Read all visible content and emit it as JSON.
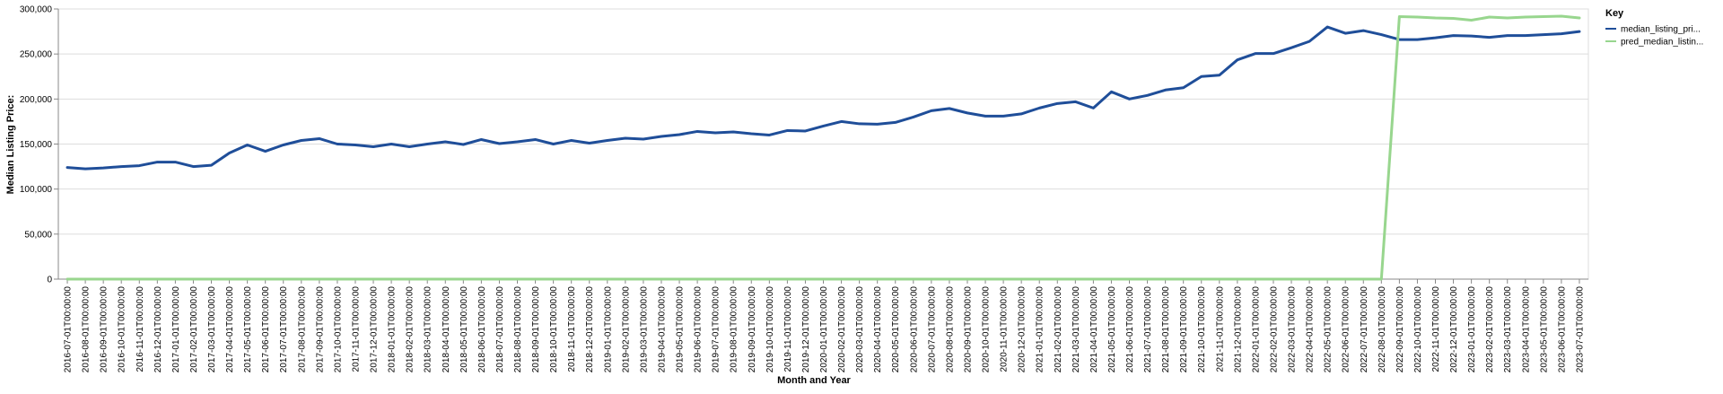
{
  "chart_data": {
    "type": "line",
    "xlabel": "Month and Year",
    "ylabel": "Median Listing Price:",
    "ylim": [
      0,
      300000
    ],
    "yticks": [
      "0",
      "50,000",
      "100,000",
      "150,000",
      "200,000",
      "250,000",
      "300,000"
    ],
    "ytick_values": [
      0,
      50000,
      100000,
      150000,
      200000,
      250000,
      300000
    ],
    "grid": true,
    "legend_title": "Key",
    "legend_position": "right",
    "x": [
      "2016-07-01T00:00:00",
      "2016-08-01T00:00:00",
      "2016-09-01T00:00:00",
      "2016-10-01T00:00:00",
      "2016-11-01T00:00:00",
      "2016-12-01T00:00:00",
      "2017-01-01T00:00:00",
      "2017-02-01T00:00:00",
      "2017-03-01T00:00:00",
      "2017-04-01T00:00:00",
      "2017-05-01T00:00:00",
      "2017-06-01T00:00:00",
      "2017-07-01T00:00:00",
      "2017-08-01T00:00:00",
      "2017-09-01T00:00:00",
      "2017-10-01T00:00:00",
      "2017-11-01T00:00:00",
      "2017-12-01T00:00:00",
      "2018-01-01T00:00:00",
      "2018-02-01T00:00:00",
      "2018-03-01T00:00:00",
      "2018-04-01T00:00:00",
      "2018-05-01T00:00:00",
      "2018-06-01T00:00:00",
      "2018-07-01T00:00:00",
      "2018-08-01T00:00:00",
      "2018-09-01T00:00:00",
      "2018-10-01T00:00:00",
      "2018-11-01T00:00:00",
      "2018-12-01T00:00:00",
      "2019-01-01T00:00:00",
      "2019-02-01T00:00:00",
      "2019-03-01T00:00:00",
      "2019-04-01T00:00:00",
      "2019-05-01T00:00:00",
      "2019-06-01T00:00:00",
      "2019-07-01T00:00:00",
      "2019-08-01T00:00:00",
      "2019-09-01T00:00:00",
      "2019-10-01T00:00:00",
      "2019-11-01T00:00:00",
      "2019-12-01T00:00:00",
      "2020-01-01T00:00:00",
      "2020-02-01T00:00:00",
      "2020-03-01T00:00:00",
      "2020-04-01T00:00:00",
      "2020-05-01T00:00:00",
      "2020-06-01T00:00:00",
      "2020-07-01T00:00:00",
      "2020-08-01T00:00:00",
      "2020-09-01T00:00:00",
      "2020-10-01T00:00:00",
      "2020-11-01T00:00:00",
      "2020-12-01T00:00:00",
      "2021-01-01T00:00:00",
      "2021-02-01T00:00:00",
      "2021-03-01T00:00:00",
      "2021-04-01T00:00:00",
      "2021-05-01T00:00:00",
      "2021-06-01T00:00:00",
      "2021-07-01T00:00:00",
      "2021-08-01T00:00:00",
      "2021-09-01T00:00:00",
      "2021-10-01T00:00:00",
      "2021-11-01T00:00:00",
      "2021-12-01T00:00:00",
      "2022-01-01T00:00:00",
      "2022-02-01T00:00:00",
      "2022-03-01T00:00:00",
      "2022-04-01T00:00:00",
      "2022-05-01T00:00:00",
      "2022-06-01T00:00:00",
      "2022-07-01T00:00:00",
      "2022-08-01T00:00:00",
      "2022-09-01T00:00:00",
      "2022-10-01T00:00:00",
      "2022-11-01T00:00:00",
      "2022-12-01T00:00:00",
      "2023-01-01T00:00:00",
      "2023-02-01T00:00:00",
      "2023-03-01T00:00:00",
      "2023-04-01T00:00:00",
      "2023-05-01T00:00:00",
      "2023-06-01T00:00:00",
      "2023-07-01T00:00:00"
    ],
    "series": [
      {
        "name": "median_listing_pri...",
        "color": "#1f4e99",
        "values": [
          124000,
          122500,
          123500,
          125000,
          126000,
          130000,
          130000,
          125000,
          126500,
          140000,
          149000,
          142000,
          149000,
          154000,
          156000,
          150000,
          149000,
          147000,
          150000,
          147000,
          150000,
          152500,
          149500,
          155000,
          150500,
          152500,
          155000,
          150000,
          154000,
          151000,
          154000,
          156500,
          155500,
          158500,
          160500,
          164000,
          162500,
          163500,
          161500,
          160000,
          165000,
          164500,
          170000,
          175000,
          172500,
          172000,
          174000,
          180000,
          187000,
          189500,
          184500,
          181000,
          181000,
          183500,
          190000,
          195000,
          197000,
          190000,
          208000,
          200000,
          204000,
          210000,
          212500,
          225000,
          226500,
          243500,
          250500,
          250500,
          257000,
          264000,
          280000,
          273000,
          276000,
          271500,
          266000,
          266000,
          268000,
          270500,
          270000,
          268500,
          270500,
          270500,
          271500,
          272500,
          275000
        ]
      },
      {
        "name": "pred_median_listin...",
        "color": "#98d68e",
        "values": [
          0,
          0,
          0,
          0,
          0,
          0,
          0,
          0,
          0,
          0,
          0,
          0,
          0,
          0,
          0,
          0,
          0,
          0,
          0,
          0,
          0,
          0,
          0,
          0,
          0,
          0,
          0,
          0,
          0,
          0,
          0,
          0,
          0,
          0,
          0,
          0,
          0,
          0,
          0,
          0,
          0,
          0,
          0,
          0,
          0,
          0,
          0,
          0,
          0,
          0,
          0,
          0,
          0,
          0,
          0,
          0,
          0,
          0,
          0,
          0,
          0,
          0,
          0,
          0,
          0,
          0,
          0,
          0,
          0,
          0,
          0,
          0,
          0,
          0,
          291500,
          291000,
          290000,
          289500,
          287500,
          291000,
          290000,
          291000,
          291500,
          292000,
          290000
        ]
      }
    ]
  }
}
